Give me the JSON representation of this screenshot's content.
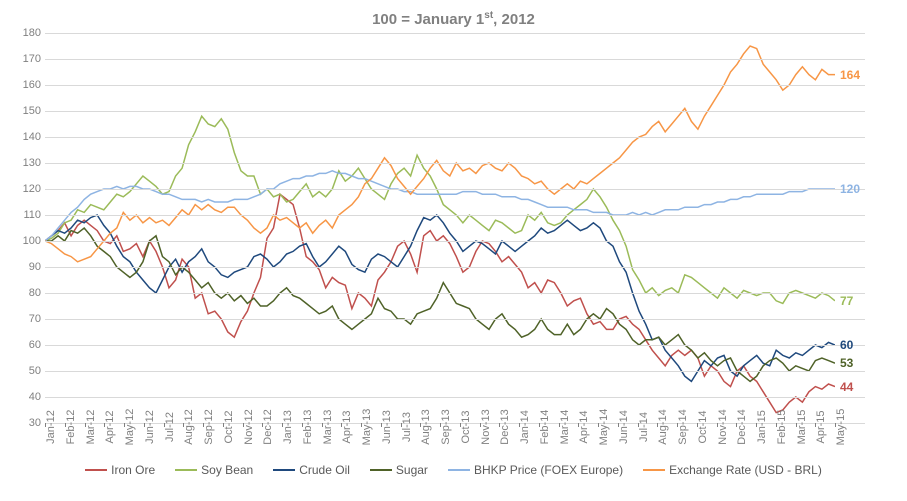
{
  "chart": {
    "type": "line",
    "title": "100 = January 1ˢᵗ, 2012",
    "title_fontsize": 15,
    "title_color": "#808080",
    "background_color": "#ffffff",
    "grid_color": "#d9d9d9",
    "axis_color": "#808080",
    "label_fontsize": 11,
    "end_label_fontsize": 12,
    "ylim": [
      30,
      180
    ],
    "ytick_step": 10,
    "yticks": [
      30,
      40,
      50,
      60,
      70,
      80,
      90,
      100,
      110,
      120,
      130,
      140,
      150,
      160,
      170,
      180
    ],
    "x_categories": [
      "Jan-12",
      "Feb-12",
      "Mar-12",
      "Apr-12",
      "May-12",
      "Jun-12",
      "Jul-12",
      "Aug-12",
      "Sep-12",
      "Oct-12",
      "Nov-12",
      "Dec-12",
      "Jan-13",
      "Feb-13",
      "Mar-13",
      "Apr-13",
      "May-13",
      "Jun-13",
      "Jul-13",
      "Aug-13",
      "Sep-13",
      "Oct-13",
      "Nov-13",
      "Dec-13",
      "Jan-14",
      "Feb-14",
      "Mar-14",
      "Apr-14",
      "May-14",
      "Jun-14",
      "Jul-14",
      "Aug-14",
      "Sep-14",
      "Oct-14",
      "Nov-14",
      "Dec-14",
      "Jan-15",
      "Feb-15",
      "Mar-15",
      "Apr-15",
      "May-15"
    ],
    "line_width": 1.5,
    "series": [
      {
        "name": "Iron Ore",
        "color": "#c0504d",
        "end_value": 44,
        "values": [
          100,
          102,
          104,
          107,
          102,
          106,
          108,
          106,
          104,
          100,
          99,
          102,
          96,
          97,
          99,
          94,
          100,
          96,
          90,
          82,
          85,
          93,
          90,
          78,
          80,
          72,
          73,
          70,
          65,
          63,
          69,
          73,
          80,
          86,
          101,
          105,
          118,
          116,
          114,
          105,
          94,
          92,
          89,
          82,
          86,
          84,
          83,
          74,
          80,
          78,
          75,
          85,
          88,
          92,
          98,
          100,
          95,
          88,
          102,
          104,
          100,
          102,
          99,
          94,
          88,
          90,
          96,
          100,
          99,
          96,
          92,
          94,
          91,
          88,
          82,
          84,
          80,
          85,
          84,
          80,
          75,
          77,
          78,
          72,
          68,
          69,
          66,
          66,
          70,
          71,
          68,
          66,
          62,
          58,
          55,
          52,
          56,
          58,
          56,
          58,
          55,
          48,
          52,
          50,
          46,
          44,
          50,
          52,
          48,
          46,
          42,
          38,
          34,
          35,
          38,
          40,
          38,
          42,
          44,
          43,
          45,
          44
        ]
      },
      {
        "name": "Soy Bean",
        "color": "#9bbb59",
        "end_value": 77,
        "values": [
          100,
          101,
          103,
          107,
          108,
          112,
          111,
          114,
          113,
          112,
          115,
          118,
          117,
          119,
          122,
          125,
          123,
          121,
          118,
          119,
          125,
          128,
          137,
          142,
          148,
          145,
          144,
          147,
          143,
          134,
          127,
          125,
          125,
          118,
          120,
          117,
          118,
          115,
          116,
          119,
          122,
          117,
          119,
          117,
          120,
          127,
          123,
          125,
          128,
          124,
          120,
          118,
          116,
          122,
          126,
          128,
          125,
          133,
          128,
          125,
          120,
          114,
          112,
          110,
          107,
          110,
          108,
          106,
          104,
          108,
          107,
          105,
          103,
          104,
          110,
          108,
          111,
          107,
          106,
          107,
          110,
          112,
          114,
          116,
          120,
          117,
          113,
          108,
          104,
          98,
          89,
          85,
          80,
          82,
          79,
          81,
          82,
          80,
          87,
          86,
          84,
          82,
          80,
          78,
          82,
          80,
          78,
          81,
          80,
          79,
          80,
          80,
          77,
          76,
          80,
          81,
          80,
          79,
          78,
          80,
          79,
          77
        ]
      },
      {
        "name": "Crude Oil",
        "color": "#1f497d",
        "end_value": 60,
        "values": [
          100,
          102,
          104,
          103,
          105,
          108,
          107,
          109,
          110,
          106,
          103,
          98,
          94,
          92,
          88,
          85,
          82,
          80,
          85,
          90,
          93,
          88,
          92,
          94,
          97,
          92,
          90,
          87,
          86,
          88,
          89,
          90,
          94,
          95,
          93,
          90,
          92,
          95,
          96,
          98,
          99,
          94,
          90,
          92,
          95,
          98,
          96,
          91,
          89,
          88,
          93,
          95,
          94,
          92,
          90,
          94,
          98,
          104,
          109,
          108,
          110,
          107,
          103,
          100,
          96,
          98,
          100,
          99,
          97,
          95,
          100,
          98,
          96,
          98,
          100,
          102,
          105,
          103,
          104,
          106,
          108,
          106,
          104,
          105,
          107,
          105,
          100,
          98,
          92,
          88,
          80,
          73,
          68,
          62,
          63,
          58,
          55,
          52,
          48,
          46,
          50,
          54,
          52,
          55,
          56,
          50,
          48,
          52,
          54,
          56,
          53,
          52,
          58,
          56,
          55,
          57,
          56,
          58,
          60,
          59,
          61,
          60
        ]
      },
      {
        "name": "Sugar",
        "color": "#4f6228",
        "end_value": 53,
        "values": [
          100,
          100,
          102,
          100,
          104,
          103,
          105,
          102,
          98,
          96,
          94,
          90,
          88,
          86,
          88,
          92,
          100,
          102,
          94,
          92,
          87,
          90,
          88,
          85,
          82,
          84,
          80,
          78,
          80,
          77,
          79,
          76,
          78,
          75,
          75,
          77,
          80,
          82,
          79,
          78,
          76,
          74,
          72,
          73,
          75,
          70,
          68,
          66,
          68,
          70,
          72,
          78,
          74,
          73,
          70,
          70,
          68,
          72,
          73,
          74,
          78,
          84,
          80,
          76,
          75,
          74,
          70,
          68,
          66,
          70,
          72,
          68,
          66,
          63,
          64,
          66,
          70,
          66,
          64,
          64,
          68,
          64,
          66,
          70,
          72,
          70,
          74,
          72,
          68,
          66,
          62,
          60,
          62,
          62,
          63,
          60,
          62,
          64,
          60,
          58,
          55,
          57,
          54,
          52,
          54,
          55,
          50,
          48,
          46,
          48,
          52,
          54,
          55,
          53,
          50,
          52,
          51,
          50,
          54,
          55,
          54,
          53
        ]
      },
      {
        "name": "BHKP Price (FOEX Europe)",
        "color": "#8eb4e3",
        "end_value": 120,
        "values": [
          100,
          102,
          105,
          108,
          111,
          113,
          116,
          118,
          119,
          120,
          120,
          121,
          120,
          121,
          121,
          120,
          120,
          119,
          118,
          118,
          117,
          116,
          116,
          116,
          115,
          116,
          115,
          115,
          115,
          116,
          116,
          116,
          117,
          118,
          120,
          120,
          122,
          123,
          124,
          124,
          125,
          125,
          126,
          126,
          127,
          126,
          126,
          125,
          124,
          124,
          123,
          122,
          121,
          120,
          120,
          119,
          119,
          118,
          118,
          118,
          118,
          118,
          118,
          118,
          119,
          119,
          119,
          118,
          118,
          118,
          117,
          117,
          117,
          116,
          116,
          115,
          114,
          113,
          113,
          113,
          113,
          112,
          112,
          112,
          111,
          111,
          111,
          110,
          110,
          110,
          111,
          110,
          111,
          110,
          111,
          112,
          112,
          112,
          113,
          113,
          113,
          114,
          114,
          115,
          115,
          116,
          116,
          117,
          117,
          118,
          118,
          118,
          118,
          118,
          119,
          119,
          119,
          120,
          120,
          120,
          120,
          120
        ]
      },
      {
        "name": "Exchange Rate (USD - BRL)",
        "color": "#f79646",
        "end_value": 164,
        "values": [
          100,
          99,
          97,
          95,
          94,
          92,
          93,
          94,
          97,
          100,
          103,
          105,
          111,
          108,
          110,
          107,
          109,
          107,
          108,
          106,
          109,
          112,
          110,
          114,
          112,
          114,
          112,
          111,
          113,
          113,
          110,
          108,
          105,
          103,
          105,
          110,
          108,
          109,
          107,
          105,
          107,
          103,
          106,
          108,
          105,
          110,
          112,
          114,
          117,
          122,
          124,
          128,
          132,
          129,
          124,
          121,
          118,
          121,
          124,
          128,
          131,
          127,
          125,
          130,
          127,
          128,
          126,
          129,
          130,
          128,
          127,
          130,
          128,
          125,
          124,
          122,
          123,
          120,
          118,
          120,
          122,
          120,
          123,
          122,
          124,
          126,
          128,
          130,
          132,
          135,
          138,
          140,
          141,
          144,
          146,
          142,
          145,
          148,
          151,
          146,
          143,
          148,
          152,
          156,
          160,
          165,
          168,
          172,
          175,
          174,
          168,
          165,
          162,
          158,
          160,
          164,
          167,
          164,
          162,
          166,
          164,
          164
        ]
      }
    ],
    "legend_position": "bottom"
  }
}
